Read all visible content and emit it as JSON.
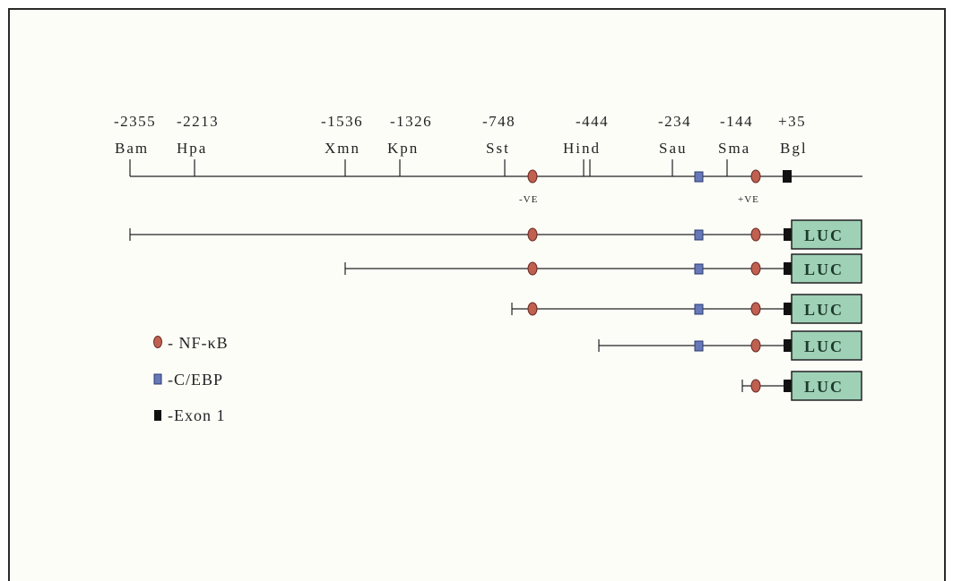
{
  "restriction_map": {
    "sites": [
      {
        "position": "-2355",
        "enzyme": "Bam"
      },
      {
        "position": "-2213",
        "enzyme": "Hpa"
      },
      {
        "position": "-1536",
        "enzyme": "Xmn"
      },
      {
        "position": "-1326",
        "enzyme": "Kpn"
      },
      {
        "position": "-748",
        "enzyme": "Sst"
      },
      {
        "position": "-444",
        "enzyme": "Hind"
      },
      {
        "position": "-234",
        "enzyme": "Sau"
      },
      {
        "position": "-144",
        "enzyme": "Sma"
      },
      {
        "position": "+35",
        "enzyme": "Bgl"
      }
    ],
    "nfkb_labels": {
      "negative": "-VE",
      "positive": "+VE"
    }
  },
  "constructs": [
    {
      "start": "-2355",
      "reporter": "LUC"
    },
    {
      "start": "-1536",
      "reporter": "LUC"
    },
    {
      "start": "-748",
      "reporter": "LUC"
    },
    {
      "start": "-444",
      "reporter": "LUC"
    },
    {
      "start": "-144",
      "reporter": "LUC"
    }
  ],
  "legend": [
    {
      "label": "- NF-κB",
      "symbol": "nfkb-oval",
      "color": "#c06050"
    },
    {
      "label": "-C/EBP",
      "symbol": "cebp-square",
      "color": "#6678b8"
    },
    {
      "label": "-Exon 1",
      "symbol": "exon-box",
      "color": "#111111"
    }
  ],
  "colors": {
    "luc_fill": "#9fd1b7",
    "nfkb": "#c06050",
    "cebp": "#6678b8",
    "exon": "#111111"
  }
}
